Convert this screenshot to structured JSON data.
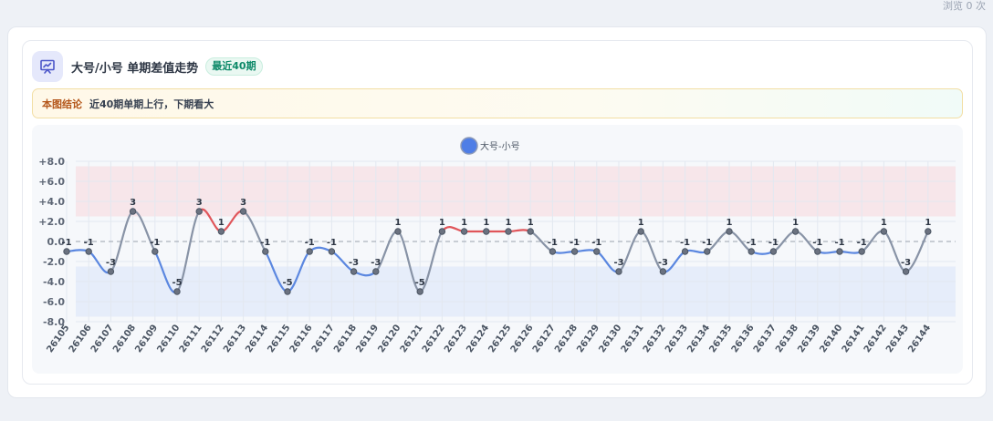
{
  "header_right": {
    "view_count": "浏览 0 次"
  },
  "card": {
    "title": "大号/小号 单期差值走势",
    "badge": "最近40期",
    "icon": "chart-presentation-icon"
  },
  "conclusion": {
    "label": "本图结论",
    "text": "近40期单期上行，下期看大"
  },
  "colors": {
    "up": "#e0555a",
    "down": "#5b87e0",
    "neutral": "#8893a6",
    "band_up": "#f7e6ea",
    "band_down": "#e6edfa",
    "legend_dot": "#4f7ee6"
  },
  "chart_data": {
    "type": "line",
    "title": "",
    "xlabel": "",
    "ylabel": "",
    "ylim": [
      -8,
      8
    ],
    "yticks": [
      "+8.0",
      "+6.0",
      "+4.0",
      "+2.0",
      "0.0",
      "-2.0",
      "-4.0",
      "-6.0",
      "-8.0"
    ],
    "ytick_values": [
      8,
      6,
      4,
      2,
      0,
      -2,
      -4,
      -6,
      -8
    ],
    "grid": true,
    "legend_position": "top-center",
    "bands": [
      {
        "from": 2.5,
        "to": 7.5,
        "color": "#f7e6ea"
      },
      {
        "from": -7.5,
        "to": -2.5,
        "color": "#e6edfa"
      }
    ],
    "x": [
      "26105",
      "26106",
      "26107",
      "26108",
      "26109",
      "26110",
      "26111",
      "26112",
      "26113",
      "26114",
      "26115",
      "26116",
      "26117",
      "26118",
      "26119",
      "26120",
      "26121",
      "26122",
      "26123",
      "26124",
      "26125",
      "26126",
      "26127",
      "26128",
      "26129",
      "26130",
      "26131",
      "26132",
      "26133",
      "26134",
      "26135",
      "26136",
      "26137",
      "26138",
      "26139",
      "26140",
      "26141",
      "26142",
      "26143",
      "26144"
    ],
    "series": [
      {
        "name": "大号-小号",
        "values": [
          -1,
          -1,
          -3,
          3,
          -1,
          -5,
          3,
          1,
          3,
          -1,
          -5,
          -1,
          -1,
          -3,
          -3,
          1,
          -5,
          1,
          1,
          1,
          1,
          1,
          -1,
          -1,
          -1,
          -3,
          1,
          -3,
          -1,
          -1,
          1,
          -1,
          -1,
          1,
          -1,
          -1,
          -1,
          1,
          -3,
          1
        ]
      }
    ]
  }
}
